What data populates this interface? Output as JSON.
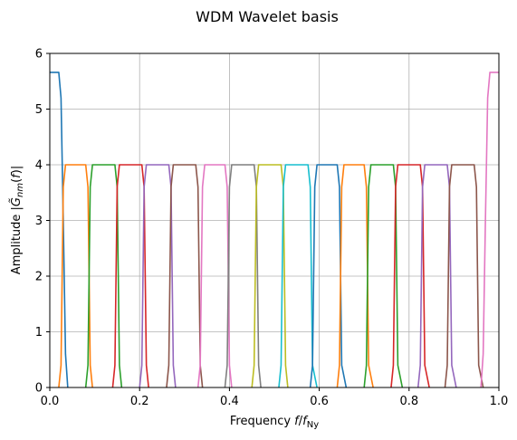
{
  "chart_data": {
    "type": "line",
    "title": "WDM Wavelet basis",
    "xlabel": "Frequency f/fNy",
    "ylabel": "Amplitude |G̃nm(f)|",
    "xlim": [
      0,
      1
    ],
    "ylim": [
      0,
      6
    ],
    "x_ticks": [
      "0.0",
      "0.2",
      "0.4",
      "0.6",
      "0.8",
      "1.0"
    ],
    "y_ticks": [
      "0",
      "1",
      "2",
      "3",
      "4",
      "5",
      "6"
    ],
    "grid": true,
    "legend": "none",
    "lowpass_edge": {
      "plateau": 5.66,
      "flat_until": 0.02,
      "zero_at": 0.04
    },
    "bandpass_plateau": 4.0,
    "series": [
      {
        "color": "#1f77b4",
        "values": [
          [
            0.0,
            5.66
          ],
          [
            0.02,
            5.66
          ],
          [
            0.025,
            5.2
          ],
          [
            0.03,
            3.0
          ],
          [
            0.035,
            0.6
          ],
          [
            0.04,
            0.0
          ]
        ]
      },
      {
        "color": "#ff7f0e",
        "values": [
          [
            0.02,
            0.0
          ],
          [
            0.025,
            0.4
          ],
          [
            0.03,
            3.6
          ],
          [
            0.035,
            4.0
          ],
          [
            0.08,
            4.0
          ],
          [
            0.085,
            3.6
          ],
          [
            0.09,
            0.4
          ],
          [
            0.095,
            0.0
          ]
        ]
      },
      {
        "color": "#2ca02c",
        "values": [
          [
            0.08,
            0.0
          ],
          [
            0.085,
            0.4
          ],
          [
            0.09,
            3.6
          ],
          [
            0.095,
            4.0
          ],
          [
            0.145,
            4.0
          ],
          [
            0.15,
            3.6
          ],
          [
            0.155,
            0.4
          ],
          [
            0.16,
            0.0
          ]
        ]
      },
      {
        "color": "#d62728",
        "values": [
          [
            0.14,
            0.0
          ],
          [
            0.145,
            0.4
          ],
          [
            0.15,
            3.6
          ],
          [
            0.155,
            4.0
          ],
          [
            0.205,
            4.0
          ],
          [
            0.21,
            3.6
          ],
          [
            0.215,
            0.4
          ],
          [
            0.22,
            0.0
          ]
        ]
      },
      {
        "color": "#9467bd",
        "values": [
          [
            0.2,
            0.0
          ],
          [
            0.205,
            0.4
          ],
          [
            0.21,
            3.6
          ],
          [
            0.215,
            4.0
          ],
          [
            0.265,
            4.0
          ],
          [
            0.27,
            3.6
          ],
          [
            0.275,
            0.4
          ],
          [
            0.28,
            0.0
          ]
        ]
      },
      {
        "color": "#8c564b",
        "values": [
          [
            0.26,
            0.0
          ],
          [
            0.265,
            0.4
          ],
          [
            0.27,
            3.6
          ],
          [
            0.275,
            4.0
          ],
          [
            0.325,
            4.0
          ],
          [
            0.33,
            3.6
          ],
          [
            0.335,
            0.4
          ],
          [
            0.34,
            0.0
          ]
        ]
      },
      {
        "color": "#e377c2",
        "values": [
          [
            0.33,
            0.0
          ],
          [
            0.335,
            0.4
          ],
          [
            0.34,
            3.6
          ],
          [
            0.345,
            4.0
          ],
          [
            0.39,
            4.0
          ],
          [
            0.395,
            3.6
          ],
          [
            0.4,
            0.4
          ],
          [
            0.405,
            0.0
          ]
        ]
      },
      {
        "color": "#7f7f7f",
        "values": [
          [
            0.39,
            0.0
          ],
          [
            0.395,
            0.4
          ],
          [
            0.4,
            3.6
          ],
          [
            0.405,
            4.0
          ],
          [
            0.455,
            4.0
          ],
          [
            0.46,
            3.6
          ],
          [
            0.465,
            0.4
          ],
          [
            0.47,
            0.0
          ]
        ]
      },
      {
        "color": "#bcbd22",
        "values": [
          [
            0.45,
            0.0
          ],
          [
            0.455,
            0.4
          ],
          [
            0.46,
            3.6
          ],
          [
            0.465,
            4.0
          ],
          [
            0.515,
            4.0
          ],
          [
            0.52,
            3.6
          ],
          [
            0.525,
            0.4
          ],
          [
            0.53,
            0.0
          ]
        ]
      },
      {
        "color": "#17becf",
        "values": [
          [
            0.51,
            0.0
          ],
          [
            0.515,
            0.4
          ],
          [
            0.52,
            3.6
          ],
          [
            0.525,
            4.0
          ],
          [
            0.575,
            4.0
          ],
          [
            0.58,
            3.6
          ],
          [
            0.585,
            0.4
          ],
          [
            0.595,
            0.0
          ]
        ]
      },
      {
        "color": "#1f77b4",
        "values": [
          [
            0.58,
            0.0
          ],
          [
            0.585,
            0.4
          ],
          [
            0.59,
            3.6
          ],
          [
            0.595,
            4.0
          ],
          [
            0.64,
            4.0
          ],
          [
            0.645,
            3.6
          ],
          [
            0.65,
            0.4
          ],
          [
            0.66,
            0.0
          ]
        ]
      },
      {
        "color": "#ff7f0e",
        "values": [
          [
            0.64,
            0.0
          ],
          [
            0.645,
            0.4
          ],
          [
            0.65,
            3.6
          ],
          [
            0.655,
            4.0
          ],
          [
            0.7,
            4.0
          ],
          [
            0.705,
            3.6
          ],
          [
            0.71,
            0.4
          ],
          [
            0.72,
            0.0
          ]
        ]
      },
      {
        "color": "#2ca02c",
        "values": [
          [
            0.7,
            0.0
          ],
          [
            0.705,
            0.4
          ],
          [
            0.71,
            3.6
          ],
          [
            0.715,
            4.0
          ],
          [
            0.765,
            4.0
          ],
          [
            0.77,
            3.6
          ],
          [
            0.775,
            0.4
          ],
          [
            0.785,
            0.0
          ]
        ]
      },
      {
        "color": "#d62728",
        "values": [
          [
            0.76,
            0.0
          ],
          [
            0.765,
            0.4
          ],
          [
            0.77,
            3.6
          ],
          [
            0.775,
            4.0
          ],
          [
            0.825,
            4.0
          ],
          [
            0.83,
            3.6
          ],
          [
            0.835,
            0.4
          ],
          [
            0.845,
            0.0
          ]
        ]
      },
      {
        "color": "#9467bd",
        "values": [
          [
            0.82,
            0.0
          ],
          [
            0.825,
            0.4
          ],
          [
            0.83,
            3.6
          ],
          [
            0.835,
            4.0
          ],
          [
            0.885,
            4.0
          ],
          [
            0.89,
            3.6
          ],
          [
            0.895,
            0.4
          ],
          [
            0.905,
            0.0
          ]
        ]
      },
      {
        "color": "#8c564b",
        "values": [
          [
            0.88,
            0.0
          ],
          [
            0.885,
            0.4
          ],
          [
            0.89,
            3.6
          ],
          [
            0.895,
            4.0
          ],
          [
            0.945,
            4.0
          ],
          [
            0.95,
            3.6
          ],
          [
            0.955,
            0.4
          ],
          [
            0.965,
            0.0
          ]
        ]
      },
      {
        "color": "#e377c2",
        "values": [
          [
            0.96,
            0.0
          ],
          [
            0.965,
            0.6
          ],
          [
            0.97,
            3.0
          ],
          [
            0.975,
            5.2
          ],
          [
            0.98,
            5.66
          ],
          [
            1.0,
            5.66
          ]
        ]
      }
    ]
  }
}
